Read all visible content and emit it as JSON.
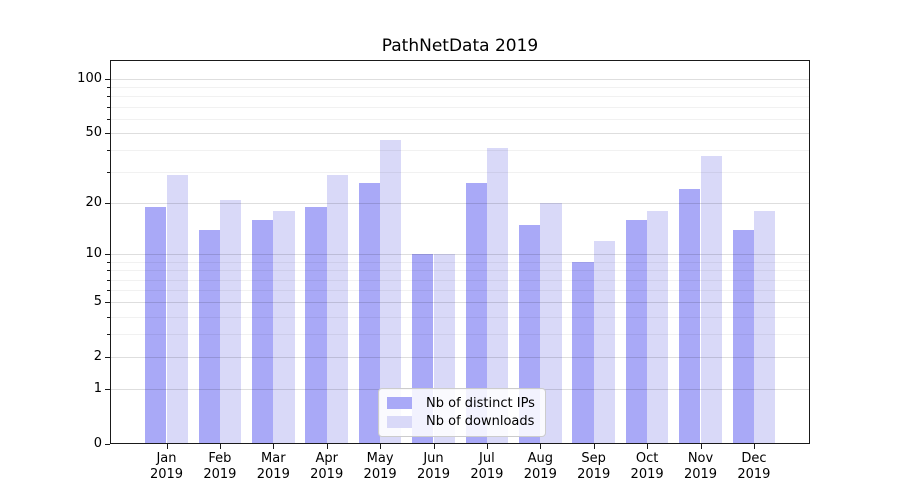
{
  "title": "PathNetData 2019",
  "chart_data": {
    "type": "bar",
    "title": "PathNetData 2019",
    "y_scale": "log1p",
    "grid": "both",
    "legend_position": "lower-center",
    "x_tick_labels": [
      [
        "Jan",
        "2019"
      ],
      [
        "Feb",
        "2019"
      ],
      [
        "Mar",
        "2019"
      ],
      [
        "Apr",
        "2019"
      ],
      [
        "May",
        "2019"
      ],
      [
        "Jun",
        "2019"
      ],
      [
        "Jul",
        "2019"
      ],
      [
        "Aug",
        "2019"
      ],
      [
        "Sep",
        "2019"
      ],
      [
        "Oct",
        "2019"
      ],
      [
        "Nov",
        "2019"
      ],
      [
        "Dec",
        "2019"
      ]
    ],
    "y_ticks": [
      0,
      1,
      2,
      5,
      10,
      20,
      50,
      100
    ],
    "y_minor_ticks": [
      3,
      4,
      6,
      7,
      8,
      9,
      30,
      40,
      60,
      70,
      80,
      90
    ],
    "ylim": [
      0,
      127
    ],
    "series": [
      {
        "name": "Nb of distinct IPs",
        "color": "#a9a9f7",
        "values": [
          19,
          14,
          16,
          19,
          26,
          10,
          26,
          15,
          9,
          16,
          24,
          14
        ]
      },
      {
        "name": "Nb of downloads",
        "color": "#d9d9f8",
        "values": [
          29,
          21,
          18,
          29,
          46,
          10,
          41,
          20,
          12,
          18,
          37,
          18
        ]
      }
    ],
    "grid_major_color": "rgba(0,0,0,0.13)",
    "grid_minor_color": "rgba(0,0,0,0.055)",
    "axis_color": "#1a1a1a",
    "background_color": "#ffffff"
  }
}
